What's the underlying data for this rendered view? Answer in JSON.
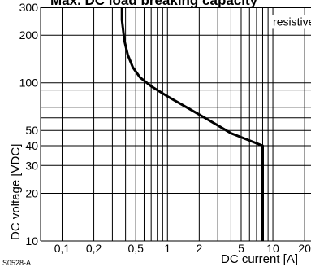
{
  "chart_data": {
    "type": "line",
    "title": "Max. DC load breaking capacity",
    "xlabel": "DC current [A]",
    "ylabel": "DC voltage [VDC]",
    "xscale": "log",
    "yscale": "log",
    "xlim": [
      0.0625,
      23
    ],
    "ylim": [
      10,
      300
    ],
    "grid": true,
    "x_ticks": [
      {
        "value": 0.1,
        "label": "0,1"
      },
      {
        "value": 0.2,
        "label": "0,2"
      },
      {
        "value": 0.5,
        "label": "0,5"
      },
      {
        "value": 1,
        "label": "1"
      },
      {
        "value": 2,
        "label": "2"
      },
      {
        "value": 5,
        "label": "5"
      },
      {
        "value": 10,
        "label": "10"
      },
      {
        "value": 20,
        "label": "20"
      }
    ],
    "x_grid": [
      0.1,
      0.2,
      0.3,
      0.4,
      0.5,
      0.6,
      0.7,
      0.8,
      0.9,
      1,
      2,
      3,
      4,
      5,
      6,
      7,
      8,
      9,
      10,
      20
    ],
    "y_ticks": [
      {
        "value": 10,
        "label": "10"
      },
      {
        "value": 20,
        "label": "20"
      },
      {
        "value": 30,
        "label": "30"
      },
      {
        "value": 40,
        "label": "40"
      },
      {
        "value": 50,
        "label": "50"
      },
      {
        "value": 100,
        "label": "100"
      },
      {
        "value": 200,
        "label": "200"
      },
      {
        "value": 300,
        "label": "300"
      }
    ],
    "y_grid": [
      10,
      20,
      30,
      40,
      50,
      60,
      70,
      80,
      90,
      100,
      200,
      300
    ],
    "series": [
      {
        "name": "resistive load",
        "x": [
          0.37,
          0.37,
          0.39,
          0.42,
          0.47,
          0.55,
          0.7,
          1.0,
          2.0,
          4.0,
          8.0,
          8.0
        ],
        "y": [
          300,
          250,
          185,
          150,
          125,
          108,
          95,
          82,
          63,
          48,
          40,
          10
        ]
      }
    ],
    "annotations": [
      {
        "text": "resistive load",
        "x": 10,
        "y": 230
      }
    ],
    "figure_code": "S0528-A"
  }
}
